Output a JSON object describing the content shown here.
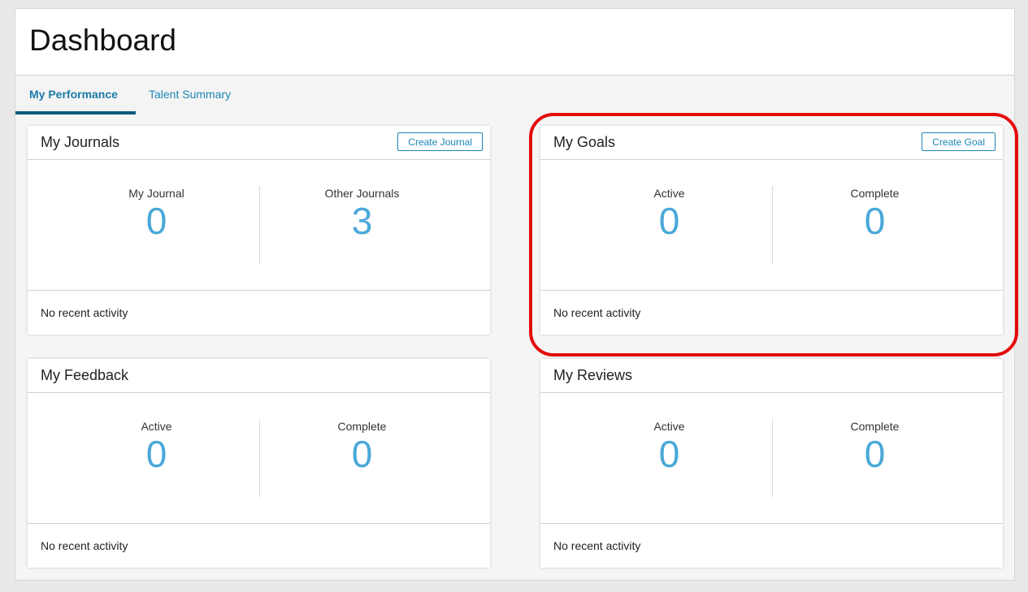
{
  "header": {
    "title": "Dashboard"
  },
  "tabs": [
    {
      "label": "My Performance",
      "active": true
    },
    {
      "label": "Talent Summary",
      "active": false
    }
  ],
  "cards": {
    "journals": {
      "title": "My Journals",
      "button": "Create Journal",
      "stats": [
        {
          "label": "My Journal",
          "value": "0"
        },
        {
          "label": "Other Journals",
          "value": "3"
        }
      ],
      "footer": "No recent activity"
    },
    "goals": {
      "title": "My Goals",
      "button": "Create Goal",
      "stats": [
        {
          "label": "Active",
          "value": "0"
        },
        {
          "label": "Complete",
          "value": "0"
        }
      ],
      "footer": "No recent activity"
    },
    "feedback": {
      "title": "My Feedback",
      "stats": [
        {
          "label": "Active",
          "value": "0"
        },
        {
          "label": "Complete",
          "value": "0"
        }
      ],
      "footer": "No recent activity"
    },
    "reviews": {
      "title": "My Reviews",
      "stats": [
        {
          "label": "Active",
          "value": "0"
        },
        {
          "label": "Complete",
          "value": "0"
        }
      ],
      "footer": "No recent activity"
    }
  },
  "colors": {
    "accent": "#1f86b5",
    "stat_value": "#4aa8d8",
    "tab_underline": "#0d5a7c",
    "highlight": "#e30b0b"
  }
}
